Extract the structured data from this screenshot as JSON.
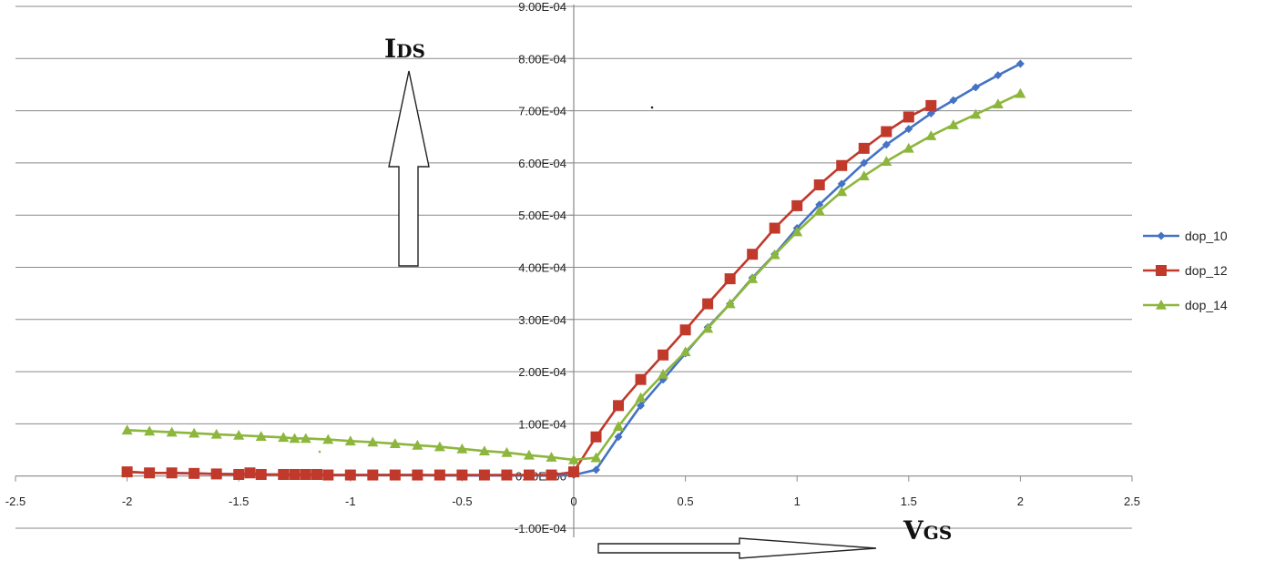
{
  "chart_data": {
    "type": "line",
    "title": "",
    "xlabel": {
      "main": "V",
      "sub": "GS"
    },
    "ylabel": {
      "main": "I",
      "sub": "DS"
    },
    "xlim": [
      -2.5,
      2.5
    ],
    "ylim": [
      -0.0001,
      0.0009
    ],
    "x_ticks": [
      "-2.5",
      "-2",
      "-1.5",
      "-1",
      "-0.5",
      "0",
      "0.5",
      "1",
      "1.5",
      "2",
      "2.5"
    ],
    "x_tick_values": [
      -2.5,
      -2,
      -1.5,
      -1,
      -0.5,
      0,
      0.5,
      1,
      1.5,
      2,
      2.5
    ],
    "y_ticks": [
      "-1.00E-04",
      "0.00E+00",
      "1.00E-04",
      "2.00E-04",
      "3.00E-04",
      "4.00E-04",
      "5.00E-04",
      "6.00E-04",
      "7.00E-04",
      "8.00E-04",
      "9.00E-04"
    ],
    "y_tick_values": [
      -0.0001,
      0,
      0.0001,
      0.0002,
      0.0003,
      0.0004,
      0.0005,
      0.0006,
      0.0007,
      0.0008,
      0.0009
    ],
    "grid": true,
    "legend_position": "right",
    "series": [
      {
        "name": "dop_10",
        "color": "#4472C4",
        "marker": "diamond",
        "x": [
          -2,
          -1.9,
          -1.8,
          -1.7,
          -1.6,
          -1.5,
          -1.4,
          -1.3,
          -1.25,
          -1.2,
          -1.1,
          -1,
          -0.9,
          -0.8,
          -0.7,
          -0.6,
          -0.5,
          -0.4,
          -0.3,
          -0.2,
          -0.1,
          0,
          0.1,
          0.2,
          0.3,
          0.4,
          0.5,
          0.6,
          0.7,
          0.8,
          0.9,
          1,
          1.1,
          1.2,
          1.3,
          1.4,
          1.5,
          1.6,
          1.7,
          1.8,
          1.9,
          2
        ],
        "y": [
          8e-06,
          6e-06,
          6e-06,
          5e-06,
          4e-06,
          4e-06,
          3e-06,
          3e-06,
          3e-06,
          3e-06,
          2e-06,
          2e-06,
          2e-06,
          2e-06,
          2e-06,
          1e-06,
          1e-06,
          1e-06,
          1e-06,
          1e-06,
          1e-06,
          2e-06,
          1.2e-05,
          7.5e-05,
          0.000135,
          0.000185,
          0.000235,
          0.000285,
          0.00033,
          0.00038,
          0.000425,
          0.000475,
          0.00052,
          0.00056,
          0.0006,
          0.000635,
          0.000665,
          0.000695,
          0.00072,
          0.000745,
          0.000768,
          0.00079
        ]
      },
      {
        "name": "dop_12",
        "color": "#C0392B",
        "marker": "square",
        "x": [
          -2,
          -1.9,
          -1.8,
          -1.7,
          -1.6,
          -1.5,
          -1.45,
          -1.4,
          -1.3,
          -1.25,
          -1.2,
          -1.15,
          -1.1,
          -1,
          -0.9,
          -0.8,
          -0.7,
          -0.6,
          -0.5,
          -0.4,
          -0.3,
          -0.2,
          -0.1,
          0,
          0.1,
          0.2,
          0.3,
          0.4,
          0.5,
          0.6,
          0.7,
          0.8,
          0.9,
          1,
          1.1,
          1.2,
          1.3,
          1.4,
          1.5,
          1.6
        ],
        "y": [
          8e-06,
          6e-06,
          6e-06,
          5e-06,
          4e-06,
          3e-06,
          6e-06,
          3e-06,
          3e-06,
          3e-06,
          3e-06,
          3e-06,
          2e-06,
          2e-06,
          2e-06,
          2e-06,
          2e-06,
          2e-06,
          2e-06,
          2e-06,
          2e-06,
          2e-06,
          2e-06,
          8e-06,
          7.5e-05,
          0.000135,
          0.000185,
          0.000232,
          0.00028,
          0.00033,
          0.000378,
          0.000425,
          0.000475,
          0.000518,
          0.000558,
          0.000595,
          0.000628,
          0.00066,
          0.000688,
          0.00071
        ]
      },
      {
        "name": "dop_14",
        "color": "#8DB63C",
        "marker": "triangle",
        "x": [
          -2,
          -1.9,
          -1.8,
          -1.7,
          -1.6,
          -1.5,
          -1.4,
          -1.3,
          -1.25,
          -1.2,
          -1.1,
          -1,
          -0.9,
          -0.8,
          -0.7,
          -0.6,
          -0.5,
          -0.4,
          -0.3,
          -0.2,
          -0.1,
          0,
          0.1,
          0.2,
          0.3,
          0.4,
          0.5,
          0.6,
          0.7,
          0.8,
          0.9,
          1,
          1.1,
          1.2,
          1.3,
          1.4,
          1.5,
          1.6,
          1.7,
          1.8,
          1.9,
          2
        ],
        "y": [
          8.8e-05,
          8.6e-05,
          8.4e-05,
          8.2e-05,
          8e-05,
          7.8e-05,
          7.6e-05,
          7.4e-05,
          7.2e-05,
          7.2e-05,
          7e-05,
          6.7e-05,
          6.5e-05,
          6.2e-05,
          5.9e-05,
          5.6e-05,
          5.2e-05,
          4.8e-05,
          4.5e-05,
          4e-05,
          3.6e-05,
          3.1e-05,
          3.5e-05,
          9.5e-05,
          0.00015,
          0.000195,
          0.000238,
          0.000283,
          0.00033,
          0.000378,
          0.000424,
          0.000468,
          0.000508,
          0.000545,
          0.000575,
          0.000603,
          0.000628,
          0.000652,
          0.000673,
          0.000693,
          0.000713,
          0.000733
        ]
      }
    ]
  }
}
